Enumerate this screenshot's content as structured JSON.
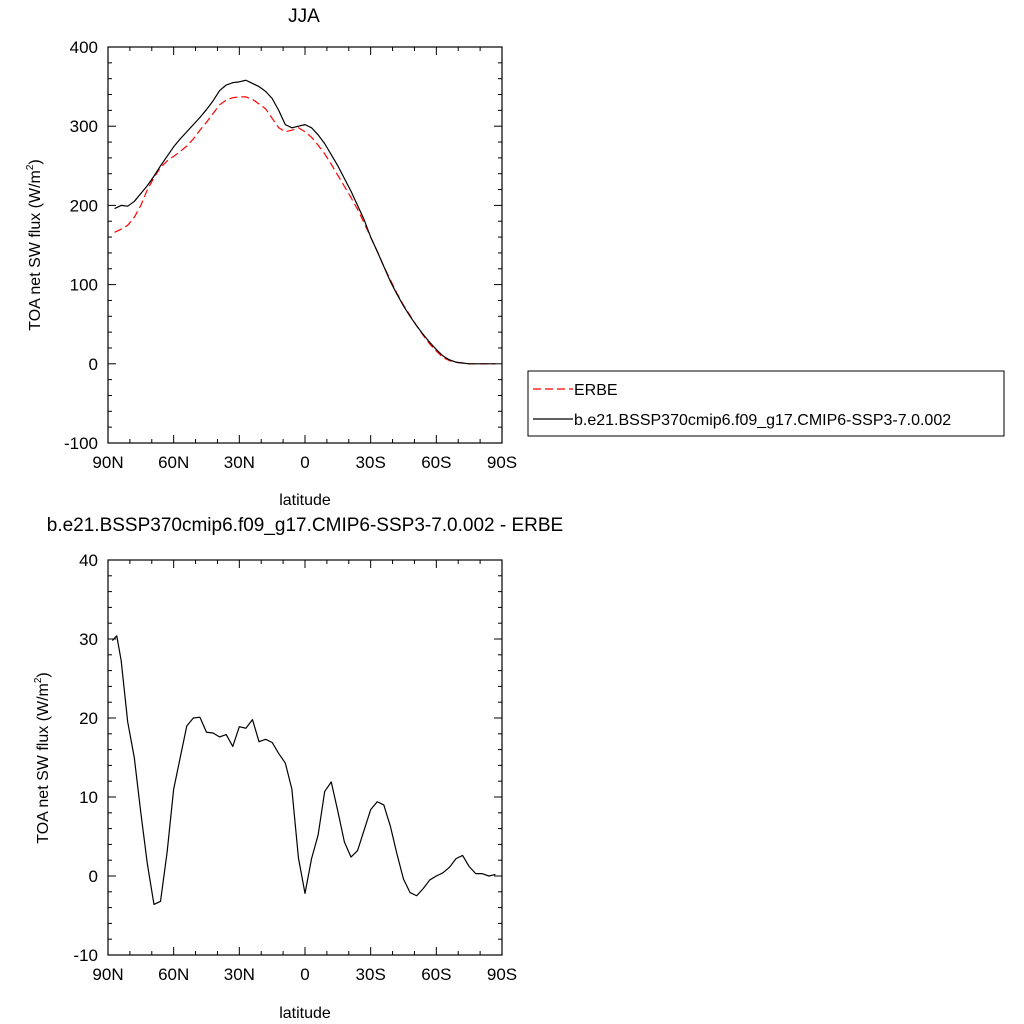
{
  "chart_data": [
    {
      "type": "line",
      "title": "JJA",
      "xlabel": "latitude",
      "ylabel_main": "TOA net SW flux (W/m",
      "ylabel_sup": "2",
      "ylabel_close": ")",
      "xlim": [
        90,
        -90
      ],
      "ylim": [
        -100,
        400
      ],
      "x_ticks": [
        {
          "value": 90,
          "label": "90N"
        },
        {
          "value": 60,
          "label": "60N"
        },
        {
          "value": 30,
          "label": "30N"
        },
        {
          "value": 0,
          "label": "0"
        },
        {
          "value": -30,
          "label": "30S"
        },
        {
          "value": -60,
          "label": "60S"
        },
        {
          "value": -90,
          "label": "90S"
        }
      ],
      "y_ticks": [
        {
          "value": 400,
          "label": "400"
        },
        {
          "value": 300,
          "label": "300"
        },
        {
          "value": 200,
          "label": "200"
        },
        {
          "value": 100,
          "label": "100"
        },
        {
          "value": 0,
          "label": "0"
        },
        {
          "value": -100,
          "label": "-100"
        }
      ],
      "legend_position": "right",
      "series": [
        {
          "name": "ERBE",
          "color": "#ff0000",
          "dashed": true,
          "x": [
            87,
            84,
            81,
            78,
            75,
            72,
            69,
            66,
            63,
            60,
            57,
            54,
            51,
            48,
            45,
            42,
            39,
            36,
            33,
            30,
            27,
            24,
            21,
            18,
            15,
            12,
            9,
            6,
            3,
            0,
            -3,
            -6,
            -9,
            -12,
            -15,
            -18,
            -21,
            -24,
            -27,
            -30,
            -33,
            -36,
            -39,
            -42,
            -45,
            -48,
            -51,
            -54,
            -57,
            -60,
            -63,
            -66,
            -69,
            -72,
            -75,
            -78,
            -81,
            -84,
            -87
          ],
          "y": [
            166,
            170,
            175,
            185,
            200,
            220,
            235,
            248,
            256,
            262,
            268,
            275,
            284,
            295,
            305,
            316,
            327,
            333,
            336,
            337,
            337,
            334,
            328,
            322,
            310,
            298,
            293,
            295,
            298,
            293,
            286,
            276,
            265,
            252,
            238,
            224,
            210,
            195,
            178,
            160,
            142,
            123,
            106,
            89,
            74,
            61,
            48,
            36,
            25,
            16,
            8,
            4,
            2,
            1,
            0,
            0,
            0,
            0,
            0
          ]
        },
        {
          "name": "b.e21.BSSP370cmip6.f09_g17.CMIP6-SSP3-7.0.002",
          "color": "#000000",
          "dashed": false,
          "x": [
            87,
            84,
            81,
            78,
            75,
            72,
            69,
            66,
            63,
            60,
            57,
            54,
            51,
            48,
            45,
            42,
            39,
            36,
            33,
            30,
            27,
            24,
            21,
            18,
            15,
            12,
            9,
            6,
            3,
            0,
            -3,
            -6,
            -9,
            -12,
            -15,
            -18,
            -21,
            -24,
            -27,
            -30,
            -33,
            -36,
            -39,
            -42,
            -45,
            -48,
            -51,
            -54,
            -57,
            -60,
            -63,
            -66,
            -69,
            -72,
            -75,
            -78,
            -81,
            -84,
            -87
          ],
          "y": [
            196,
            200,
            199,
            205,
            215,
            225,
            237,
            250,
            262,
            274,
            284,
            293,
            302,
            311,
            321,
            332,
            345,
            352,
            355,
            356,
            358,
            354,
            350,
            344,
            335,
            320,
            302,
            298,
            300,
            302,
            298,
            289,
            278,
            264,
            250,
            234,
            218,
            200,
            182,
            160,
            142,
            123,
            104,
            88,
            73,
            60,
            48,
            37,
            27,
            18,
            10,
            5,
            2,
            1,
            0,
            0,
            0,
            0,
            0
          ]
        }
      ]
    },
    {
      "type": "line",
      "title": "b.e21.BSSP370cmip6.f09_g17.CMIP6-SSP3-7.0.002 - ERBE",
      "xlabel": "latitude",
      "ylabel_main": "TOA net SW flux (W/m",
      "ylabel_sup": "2",
      "ylabel_close": ")",
      "xlim": [
        90,
        -90
      ],
      "ylim": [
        -10,
        40
      ],
      "x_ticks": [
        {
          "value": 90,
          "label": "90N"
        },
        {
          "value": 60,
          "label": "60N"
        },
        {
          "value": 30,
          "label": "30N"
        },
        {
          "value": 0,
          "label": "0"
        },
        {
          "value": -30,
          "label": "30S"
        },
        {
          "value": -60,
          "label": "60S"
        },
        {
          "value": -90,
          "label": "90S"
        }
      ],
      "y_ticks": [
        {
          "value": 40,
          "label": "40"
        },
        {
          "value": 30,
          "label": "30"
        },
        {
          "value": 20,
          "label": "20"
        },
        {
          "value": 10,
          "label": "10"
        },
        {
          "value": 0,
          "label": "0"
        },
        {
          "value": -10,
          "label": "-10"
        }
      ],
      "series": [
        {
          "color": "#000000",
          "dashed": false,
          "x": [
            88,
            86,
            84,
            81,
            78,
            75,
            72,
            69,
            66,
            63,
            60,
            57,
            54,
            51,
            48,
            45,
            42,
            39,
            36,
            33,
            30,
            27,
            24,
            21,
            18,
            15,
            12,
            9,
            6,
            3,
            0,
            -3,
            -6,
            -9,
            -12,
            -15,
            -18,
            -21,
            -24,
            -27,
            -30,
            -33,
            -36,
            -39,
            -42,
            -45,
            -48,
            -51,
            -54,
            -57,
            -60,
            -63,
            -66,
            -69,
            -72,
            -75,
            -78,
            -81,
            -84,
            -87
          ],
          "y": [
            29.8,
            30.4,
            27.3,
            19.5,
            15.0,
            8.0,
            1.5,
            -3.6,
            -3.2,
            3.0,
            11.0,
            15.0,
            19.0,
            20.0,
            20.1,
            18.2,
            18.1,
            17.6,
            17.9,
            16.4,
            18.9,
            18.7,
            19.8,
            17.0,
            17.3,
            16.9,
            15.5,
            14.3,
            11.0,
            2.3,
            -2.2,
            2.2,
            5.2,
            10.7,
            11.9,
            8.2,
            4.3,
            2.4,
            3.2,
            5.8,
            8.4,
            9.4,
            9.0,
            6.3,
            2.8,
            -0.4,
            -2.1,
            -2.5,
            -1.6,
            -0.5,
            0.0,
            0.4,
            1.1,
            2.2,
            2.6,
            1.2,
            0.3,
            0.3,
            0.0,
            0.2
          ]
        }
      ]
    }
  ]
}
